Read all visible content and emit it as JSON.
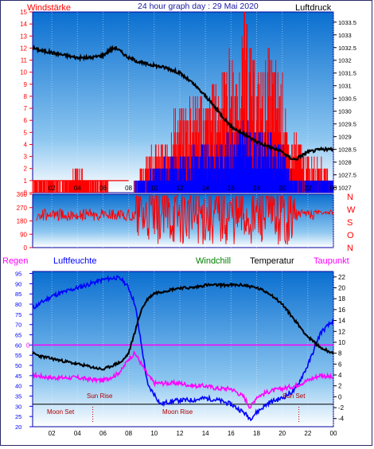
{
  "header": {
    "left_label": "Windstärke",
    "title": "24 hour graph day : 29 Mai 2020",
    "right_label": "Luftdruck"
  },
  "bottom_header": {
    "regen": "Regen",
    "luftfeuchte": "Luftfeuchte",
    "windchill": "Windchill",
    "temperatur": "Temperatur",
    "taupunkt": "Taupunkt"
  },
  "annotations": {
    "sun_rise": "Sun Rise",
    "sun_set": "Sun Set",
    "moon_set": "Moon Set",
    "moon_rise": "Moon Rise",
    "rain_zero": "0"
  },
  "colors": {
    "plot_top": "#0a6fd0",
    "plot_bottom": "#ffffff",
    "pressure": "#000000",
    "wind_gust": "#ff0000",
    "wind_speed": "#0000ff",
    "wind_dir": "#ff0000",
    "humidity": "#0000ff",
    "temperature": "#000000",
    "dewpoint": "#ff00ff",
    "rain_line": "#ff00ff",
    "left_axis": "#ff0000",
    "humidity_axis": "#0000ff",
    "windchill_label": "#008000",
    "taupunkt_label": "#ff00ff",
    "regen_label": "#ff00ff"
  },
  "chart_data": [
    {
      "type": "line",
      "name": "wind-pressure",
      "x_ticks": [
        "02",
        "04",
        "06",
        "08",
        "10",
        "12",
        "14",
        "16",
        "18",
        "20",
        "22",
        "00"
      ],
      "y_left_ticks": [
        "0",
        "1",
        "2",
        "3",
        "4",
        "5",
        "6",
        "7",
        "8",
        "9",
        "10",
        "11",
        "12",
        "13",
        "14",
        "15"
      ],
      "y_right_ticks": [
        "1027",
        "1027.5",
        "1028",
        "1028.5",
        "1029",
        "1029.5",
        "1030",
        "1030.5",
        "1031",
        "1031.5",
        "1032",
        "1032.5",
        "1033",
        "1033.5"
      ],
      "ylim_left": [
        0,
        15
      ],
      "ylim_right": [
        1026.8,
        1033.9
      ],
      "xlim": [
        0.5,
        24
      ],
      "pressure": {
        "x": [
          0.5,
          1,
          2,
          3,
          4,
          5,
          6,
          6.5,
          7,
          7.5,
          8,
          8.5,
          9,
          10,
          11,
          12,
          13,
          14,
          15,
          16,
          17,
          18,
          19,
          20,
          20.5,
          21,
          22,
          23,
          24
        ],
        "y": [
          1032.5,
          1032.4,
          1032.3,
          1032.2,
          1032.1,
          1032.1,
          1032.2,
          1032.4,
          1032.5,
          1032.3,
          1032.1,
          1032.0,
          1031.9,
          1031.8,
          1031.7,
          1031.5,
          1031.1,
          1030.6,
          1030.0,
          1029.4,
          1029.1,
          1028.8,
          1028.6,
          1028.4,
          1028.2,
          1028.1,
          1028.4,
          1028.5,
          1028.5
        ]
      },
      "gust_envelope": {
        "x": [
          0.5,
          1,
          2,
          3,
          4,
          5,
          6,
          7,
          8,
          8.5,
          9,
          10,
          11,
          11.5,
          12,
          13,
          14,
          15,
          16,
          16.5,
          17,
          18,
          19,
          20,
          20.5,
          21,
          22,
          23,
          24
        ],
        "y": [
          1,
          1,
          1,
          1,
          2,
          1,
          1,
          0,
          0,
          1,
          2,
          4,
          4,
          7,
          7,
          8,
          8,
          9,
          12,
          9,
          15,
          10,
          12,
          10,
          4,
          5,
          3,
          3,
          1
        ]
      },
      "speed_envelope": {
        "x": [
          8.5,
          9,
          10,
          11,
          12,
          13,
          14,
          15,
          16,
          17,
          18,
          19,
          20,
          20.5,
          21,
          22,
          23,
          24
        ],
        "y": [
          1,
          1,
          2,
          3,
          3,
          4,
          4,
          4,
          5,
          6,
          5,
          5,
          4,
          2,
          1,
          1,
          1,
          1
        ]
      }
    },
    {
      "type": "scatter",
      "name": "wind-direction",
      "y_left_ticks": [
        "0",
        "90",
        "180",
        "270",
        "360"
      ],
      "y_right_ticks": [
        "N",
        "W",
        "S",
        "O",
        "N"
      ],
      "ylim": [
        0,
        360
      ],
      "xlim": [
        0.5,
        24
      ],
      "baseline_deg": 220
    },
    {
      "type": "line",
      "name": "temperature-humidity",
      "y_left_ticks": [
        "20",
        "25",
        "30",
        "35",
        "40",
        "45",
        "50",
        "55",
        "60",
        "65",
        "70",
        "75",
        "80",
        "85",
        "90",
        "95"
      ],
      "y_right_ticks": [
        "-4",
        "-2",
        "0",
        "2",
        "4",
        "6",
        "8",
        "10",
        "12",
        "14",
        "16",
        "18",
        "20",
        "22"
      ],
      "ylim_left": [
        20,
        96
      ],
      "ylim_right": [
        -5.5,
        23
      ],
      "xlim": [
        0.5,
        24
      ],
      "humidity": {
        "x": [
          0.5,
          1,
          2,
          3,
          4,
          5,
          6,
          7,
          7.5,
          8,
          8.5,
          9,
          9.5,
          10,
          10.5,
          11,
          12,
          13,
          14,
          15,
          16,
          17,
          17.5,
          18,
          19,
          20,
          21,
          22,
          23,
          24
        ],
        "y": [
          78,
          80,
          84,
          86,
          88,
          90,
          92,
          93,
          92,
          88,
          80,
          60,
          40,
          36,
          31,
          32,
          33,
          33,
          34,
          33,
          31,
          27,
          24,
          27,
          32,
          34,
          38,
          50,
          66,
          72
        ]
      },
      "temperature": {
        "x": [
          0.5,
          1,
          2,
          3,
          4,
          5,
          6,
          7,
          7.5,
          8,
          8.5,
          9,
          9.5,
          10,
          11,
          12,
          13,
          14,
          15,
          16,
          17,
          18,
          19,
          20,
          21,
          22,
          23,
          24
        ],
        "y": [
          8,
          7.5,
          7,
          6.5,
          6,
          5.5,
          5,
          6,
          6.5,
          8,
          12,
          16,
          18,
          19,
          19.5,
          20,
          20,
          20.5,
          20.5,
          20.5,
          20.5,
          20,
          19,
          17,
          14,
          11,
          9,
          8
        ]
      },
      "dewpoint": {
        "x": [
          0.5,
          1,
          2,
          3,
          4,
          5,
          6,
          7,
          7.5,
          8,
          8.5,
          9,
          9.5,
          10,
          11,
          12,
          13,
          14,
          15,
          16,
          17,
          17.5,
          18,
          19,
          20,
          21,
          22,
          23,
          24
        ],
        "y": [
          4,
          3.8,
          3.5,
          3.5,
          3.5,
          3.2,
          3,
          4,
          5,
          7,
          8,
          6,
          4,
          2.5,
          2.5,
          2.5,
          2,
          2,
          1.5,
          1.5,
          0,
          -2,
          0,
          1,
          1.5,
          2,
          3,
          4,
          3.5
        ]
      },
      "rain_zero_value": 60,
      "sun_line_value": 31
    }
  ]
}
